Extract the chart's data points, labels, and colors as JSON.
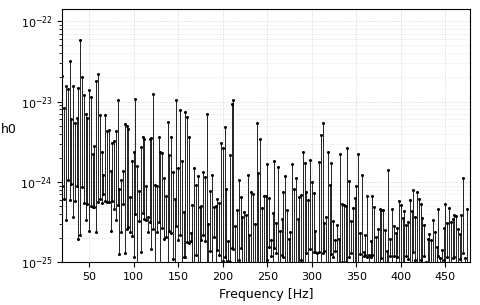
{
  "xlabel": "Frequency [Hz]",
  "ylabel": "h0",
  "xlim": [
    20,
    478
  ],
  "ylim_log_min": -25.0,
  "ylim_log_max": -21.85,
  "grid_color": "#bbbbbb",
  "line_color": "#000000",
  "marker_color": "#000000",
  "marker_size": 2.2,
  "line_width": 0.6,
  "figsize": [
    4.8,
    3.05
  ],
  "dpi": 100,
  "xticks": [
    50,
    100,
    150,
    200,
    250,
    300,
    350,
    400,
    450
  ],
  "seed": 77
}
